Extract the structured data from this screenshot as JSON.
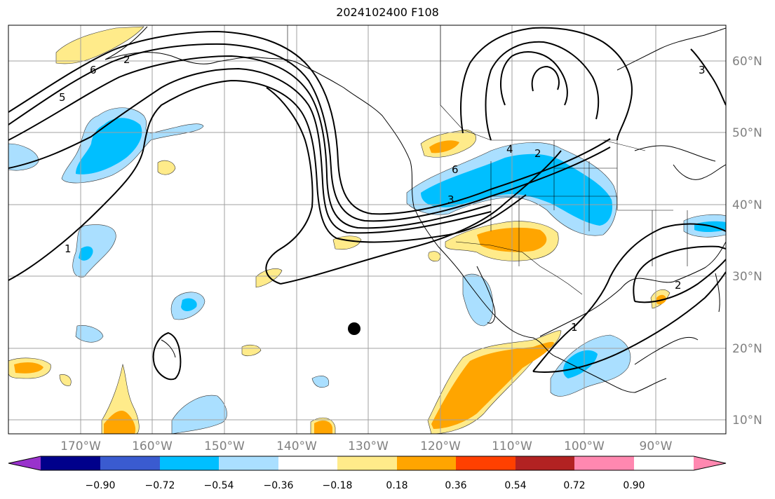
{
  "title": "2024102400 F108",
  "map": {
    "longitude_labels": [
      "170°W",
      "160°W",
      "150°W",
      "140°W",
      "130°W",
      "120°W",
      "110°W",
      "100°W",
      "90°W"
    ],
    "latitude_labels": [
      "60°N",
      "50°N",
      "40°N",
      "30°N",
      "20°N",
      "10°N"
    ],
    "contour_labels": [
      "6",
      "5",
      "2",
      "6",
      "4",
      "2",
      "3",
      "1",
      "1",
      "2",
      "3"
    ]
  },
  "colorbar": {
    "colors": [
      "#9932cc",
      "#00008b",
      "#3a5bd0",
      "#00bfff",
      "#aadfff",
      "#ffffff",
      "#ffeb8a",
      "#ffa500",
      "#ff4000",
      "#b22222",
      "#ff88b0"
    ],
    "tick_labels": [
      "−0.90",
      "−0.72",
      "−0.54",
      "−0.36",
      "−0.18",
      "0.18",
      "0.36",
      "0.54",
      "0.72",
      "0.90"
    ]
  },
  "colors": {
    "light_blue": "#aadfff",
    "deep_sky_blue": "#00bfff",
    "light_yellow": "#ffeb8a",
    "orange": "#ffa500",
    "grid": "#a0a0a0",
    "contour": "#000000"
  }
}
